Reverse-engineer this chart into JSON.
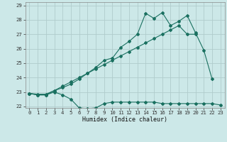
{
  "xlabel": "Humidex (Indice chaleur)",
  "x_values": [
    0,
    1,
    2,
    3,
    4,
    5,
    6,
    7,
    8,
    9,
    10,
    11,
    12,
    13,
    14,
    15,
    16,
    17,
    18,
    19,
    20,
    21,
    22,
    23
  ],
  "line1": [
    22.9,
    22.8,
    22.8,
    23.0,
    22.8,
    22.5,
    21.9,
    21.85,
    21.9,
    22.2,
    22.3,
    22.3,
    22.3,
    22.3,
    22.3,
    22.3,
    22.2,
    22.2,
    22.2,
    22.2,
    22.2,
    22.2,
    22.2,
    22.1
  ],
  "line2": [
    22.9,
    22.8,
    22.8,
    23.1,
    23.3,
    23.55,
    23.9,
    24.3,
    24.7,
    25.2,
    25.35,
    26.1,
    26.5,
    27.0,
    28.45,
    28.1,
    28.5,
    27.6,
    27.9,
    28.3,
    27.1,
    25.9,
    23.9,
    null
  ],
  "line3": [
    22.9,
    22.85,
    22.85,
    23.1,
    23.4,
    23.7,
    24.0,
    24.3,
    24.6,
    24.9,
    25.2,
    25.5,
    25.8,
    26.1,
    26.4,
    26.7,
    27.0,
    27.3,
    27.6,
    27.0,
    27.0,
    null,
    null,
    null
  ],
  "bg_color": "#cce8e8",
  "grid_color": "#b0cccc",
  "line_color": "#1a7060",
  "ylim_min": 21.9,
  "ylim_max": 29.2,
  "xlim_min": -0.5,
  "xlim_max": 23.5,
  "yticks": [
    22,
    23,
    24,
    25,
    26,
    27,
    28,
    29
  ],
  "xticks": [
    0,
    1,
    2,
    3,
    4,
    5,
    6,
    7,
    8,
    9,
    10,
    11,
    12,
    13,
    14,
    15,
    16,
    17,
    18,
    19,
    20,
    21,
    22,
    23
  ]
}
